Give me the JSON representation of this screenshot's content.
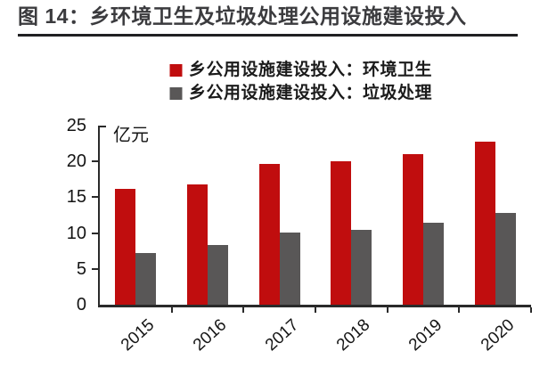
{
  "figure": {
    "title": "图 14：乡环境卫生及垃圾处理公用设施建设投入"
  },
  "chart_data": {
    "type": "bar",
    "title": "图 14：乡环境卫生及垃圾处理公用设施建设投入",
    "unit_label": "亿元",
    "ylabel": "亿元",
    "xlabel": "",
    "categories": [
      "2015",
      "2016",
      "2017",
      "2018",
      "2019",
      "2020"
    ],
    "series": [
      {
        "name": "乡公用设施建设投入：环境卫生",
        "color": "#c00d0e",
        "values": [
          16.2,
          16.8,
          19.7,
          20.0,
          21.0,
          22.8
        ]
      },
      {
        "name": "乡公用设施建设投入：垃圾处理",
        "color": "#595757",
        "values": [
          7.2,
          8.3,
          10.1,
          10.5,
          11.5,
          12.8
        ]
      }
    ],
    "ylim": [
      0,
      25
    ],
    "yticks": [
      0,
      5,
      10,
      15,
      20,
      25
    ],
    "grid": false,
    "legend_position": "top"
  },
  "colors": {
    "accent_red": "#c00d0e",
    "series_gray": "#595757",
    "axis": "#2a2a2a",
    "title_text": "#3b3b3e",
    "title_rule": "#202022"
  }
}
